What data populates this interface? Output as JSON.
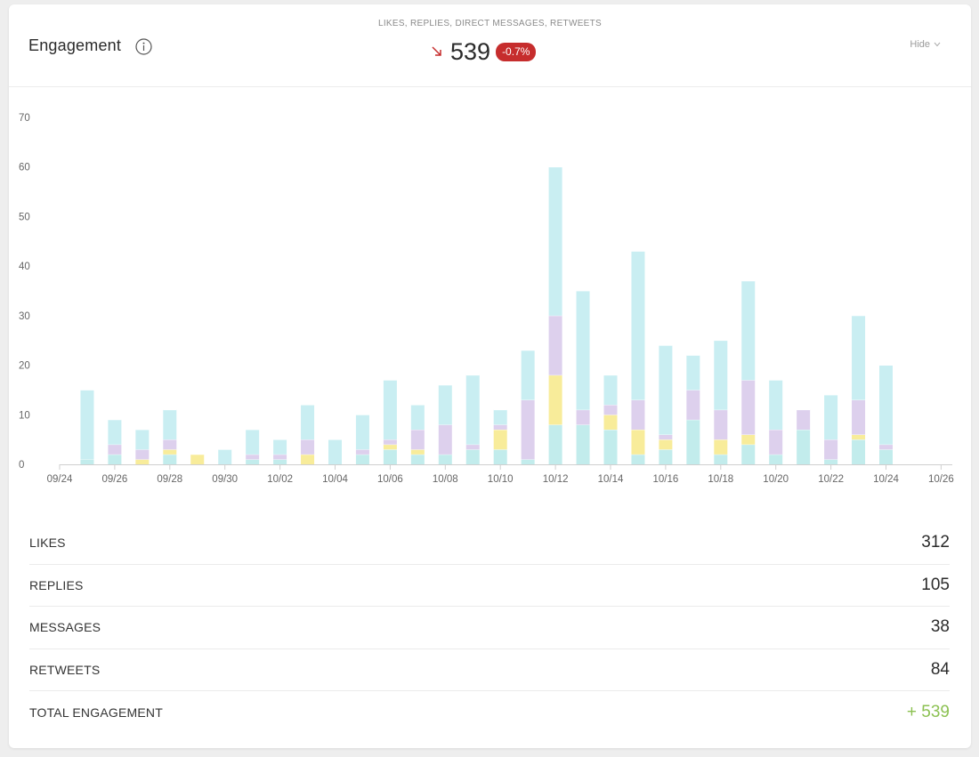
{
  "header": {
    "title": "Engagement",
    "subtitle": "LIKES, REPLIES, DIRECT MESSAGES, RETWEETS",
    "total": "539",
    "delta": "-0.7%",
    "hide_label": "Hide"
  },
  "colors": {
    "likes": "#c9eef2",
    "replies": "#ddd0ed",
    "messages": "#f8ec9a",
    "retweets": "#c2ecec",
    "badge": "#c62d2d",
    "total_positive": "#8cc152"
  },
  "chart_data": {
    "type": "bar",
    "stacked": true,
    "x_tick_labels": [
      "09/24",
      "09/26",
      "09/28",
      "09/30",
      "10/02",
      "10/04",
      "10/06",
      "10/08",
      "10/10",
      "10/12",
      "10/14",
      "10/16",
      "10/18",
      "10/20",
      "10/22",
      "10/24",
      "10/26"
    ],
    "y_ticks": [
      0,
      10,
      20,
      30,
      40,
      50,
      60,
      70
    ],
    "ylim": [
      0,
      70
    ],
    "grid": false,
    "legend": "none",
    "categories": [
      "09/25",
      "09/26",
      "09/27",
      "09/28",
      "09/29",
      "09/30",
      "10/01",
      "10/02",
      "10/03",
      "10/04",
      "10/05",
      "10/06",
      "10/07",
      "10/08",
      "10/09",
      "10/10",
      "10/11",
      "10/12",
      "10/13",
      "10/14",
      "10/15",
      "10/16",
      "10/17",
      "10/18",
      "10/19",
      "10/20",
      "10/21",
      "10/22",
      "10/23",
      "10/24"
    ],
    "series": [
      {
        "name": "RETWEETS",
        "values": [
          1,
          2,
          0,
          2,
          0,
          0,
          1,
          1,
          0,
          0,
          2,
          3,
          2,
          2,
          3,
          3,
          1,
          8,
          8,
          7,
          2,
          3,
          9,
          2,
          4,
          2,
          7,
          1,
          5,
          3
        ]
      },
      {
        "name": "MESSAGES",
        "values": [
          0,
          0,
          1,
          1,
          2,
          0,
          0,
          0,
          2,
          0,
          0,
          1,
          1,
          0,
          0,
          4,
          0,
          10,
          0,
          3,
          5,
          2,
          0,
          3,
          2,
          0,
          0,
          0,
          1,
          0
        ]
      },
      {
        "name": "REPLIES",
        "values": [
          0,
          2,
          2,
          2,
          0,
          0,
          1,
          1,
          3,
          0,
          1,
          1,
          4,
          6,
          1,
          1,
          12,
          12,
          3,
          2,
          6,
          1,
          6,
          6,
          11,
          5,
          4,
          4,
          7,
          1
        ]
      },
      {
        "name": "LIKES",
        "values": [
          14,
          5,
          4,
          6,
          0,
          3,
          5,
          3,
          7,
          5,
          7,
          12,
          5,
          8,
          14,
          3,
          10,
          30,
          24,
          6,
          30,
          18,
          7,
          14,
          20,
          10,
          0,
          9,
          17,
          16
        ]
      }
    ]
  },
  "stats": [
    {
      "label": "LIKES",
      "value": "312"
    },
    {
      "label": "REPLIES",
      "value": "105"
    },
    {
      "label": "MESSAGES",
      "value": "38"
    },
    {
      "label": "RETWEETS",
      "value": "84"
    },
    {
      "label": "TOTAL ENGAGEMENT",
      "value": "+ 539"
    }
  ]
}
